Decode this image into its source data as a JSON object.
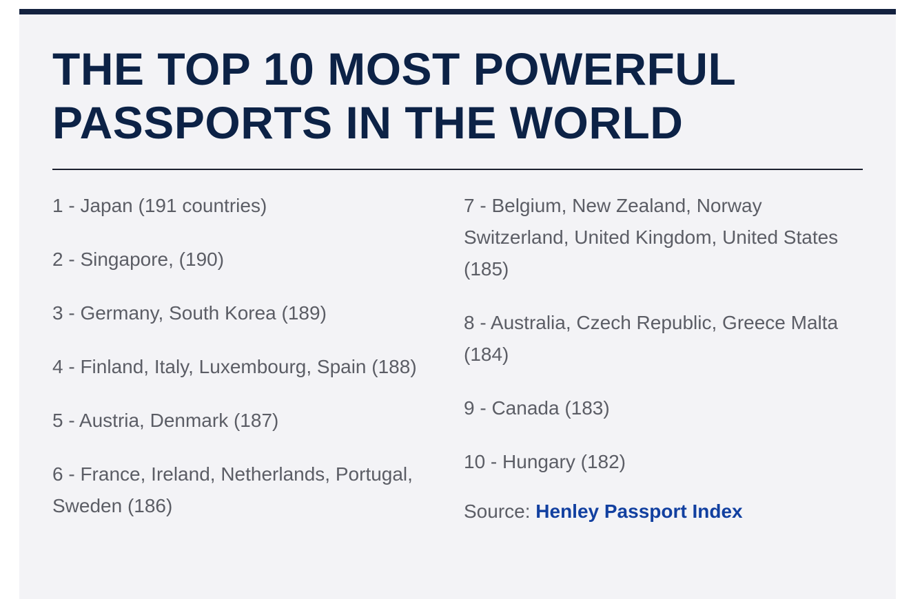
{
  "article": {
    "title_line1": "THE TOP 10 MOST POWERFUL",
    "title_line2": "PASSPORTS IN THE WORLD",
    "left_items": [
      "1 - Japan (191 countries)",
      "2 - Singapore, (190)",
      "3 - Germany, South Korea (189)",
      "4 - Finland, Italy, Luxembourg, Spain (188)",
      "5 - Austria, Denmark (187)",
      "6 - France, Ireland, Netherlands, Portugal, Sweden (186)"
    ],
    "right_items": [
      "7 - Belgium, New Zealand, Norway Switzerland, United Kingdom, United States (185)",
      "8 - Australia, Czech Republic, Greece Malta (184)",
      "9 - Canada (183)",
      "10 - Hungary (182)"
    ],
    "source_label": "Source: ",
    "source_link": "Henley Passport Index"
  },
  "colors": {
    "title": "#0c2246",
    "top_bar": "#13213f",
    "body_text": "#5b5d65",
    "link": "#1240a0",
    "background": "#f3f3f6"
  }
}
